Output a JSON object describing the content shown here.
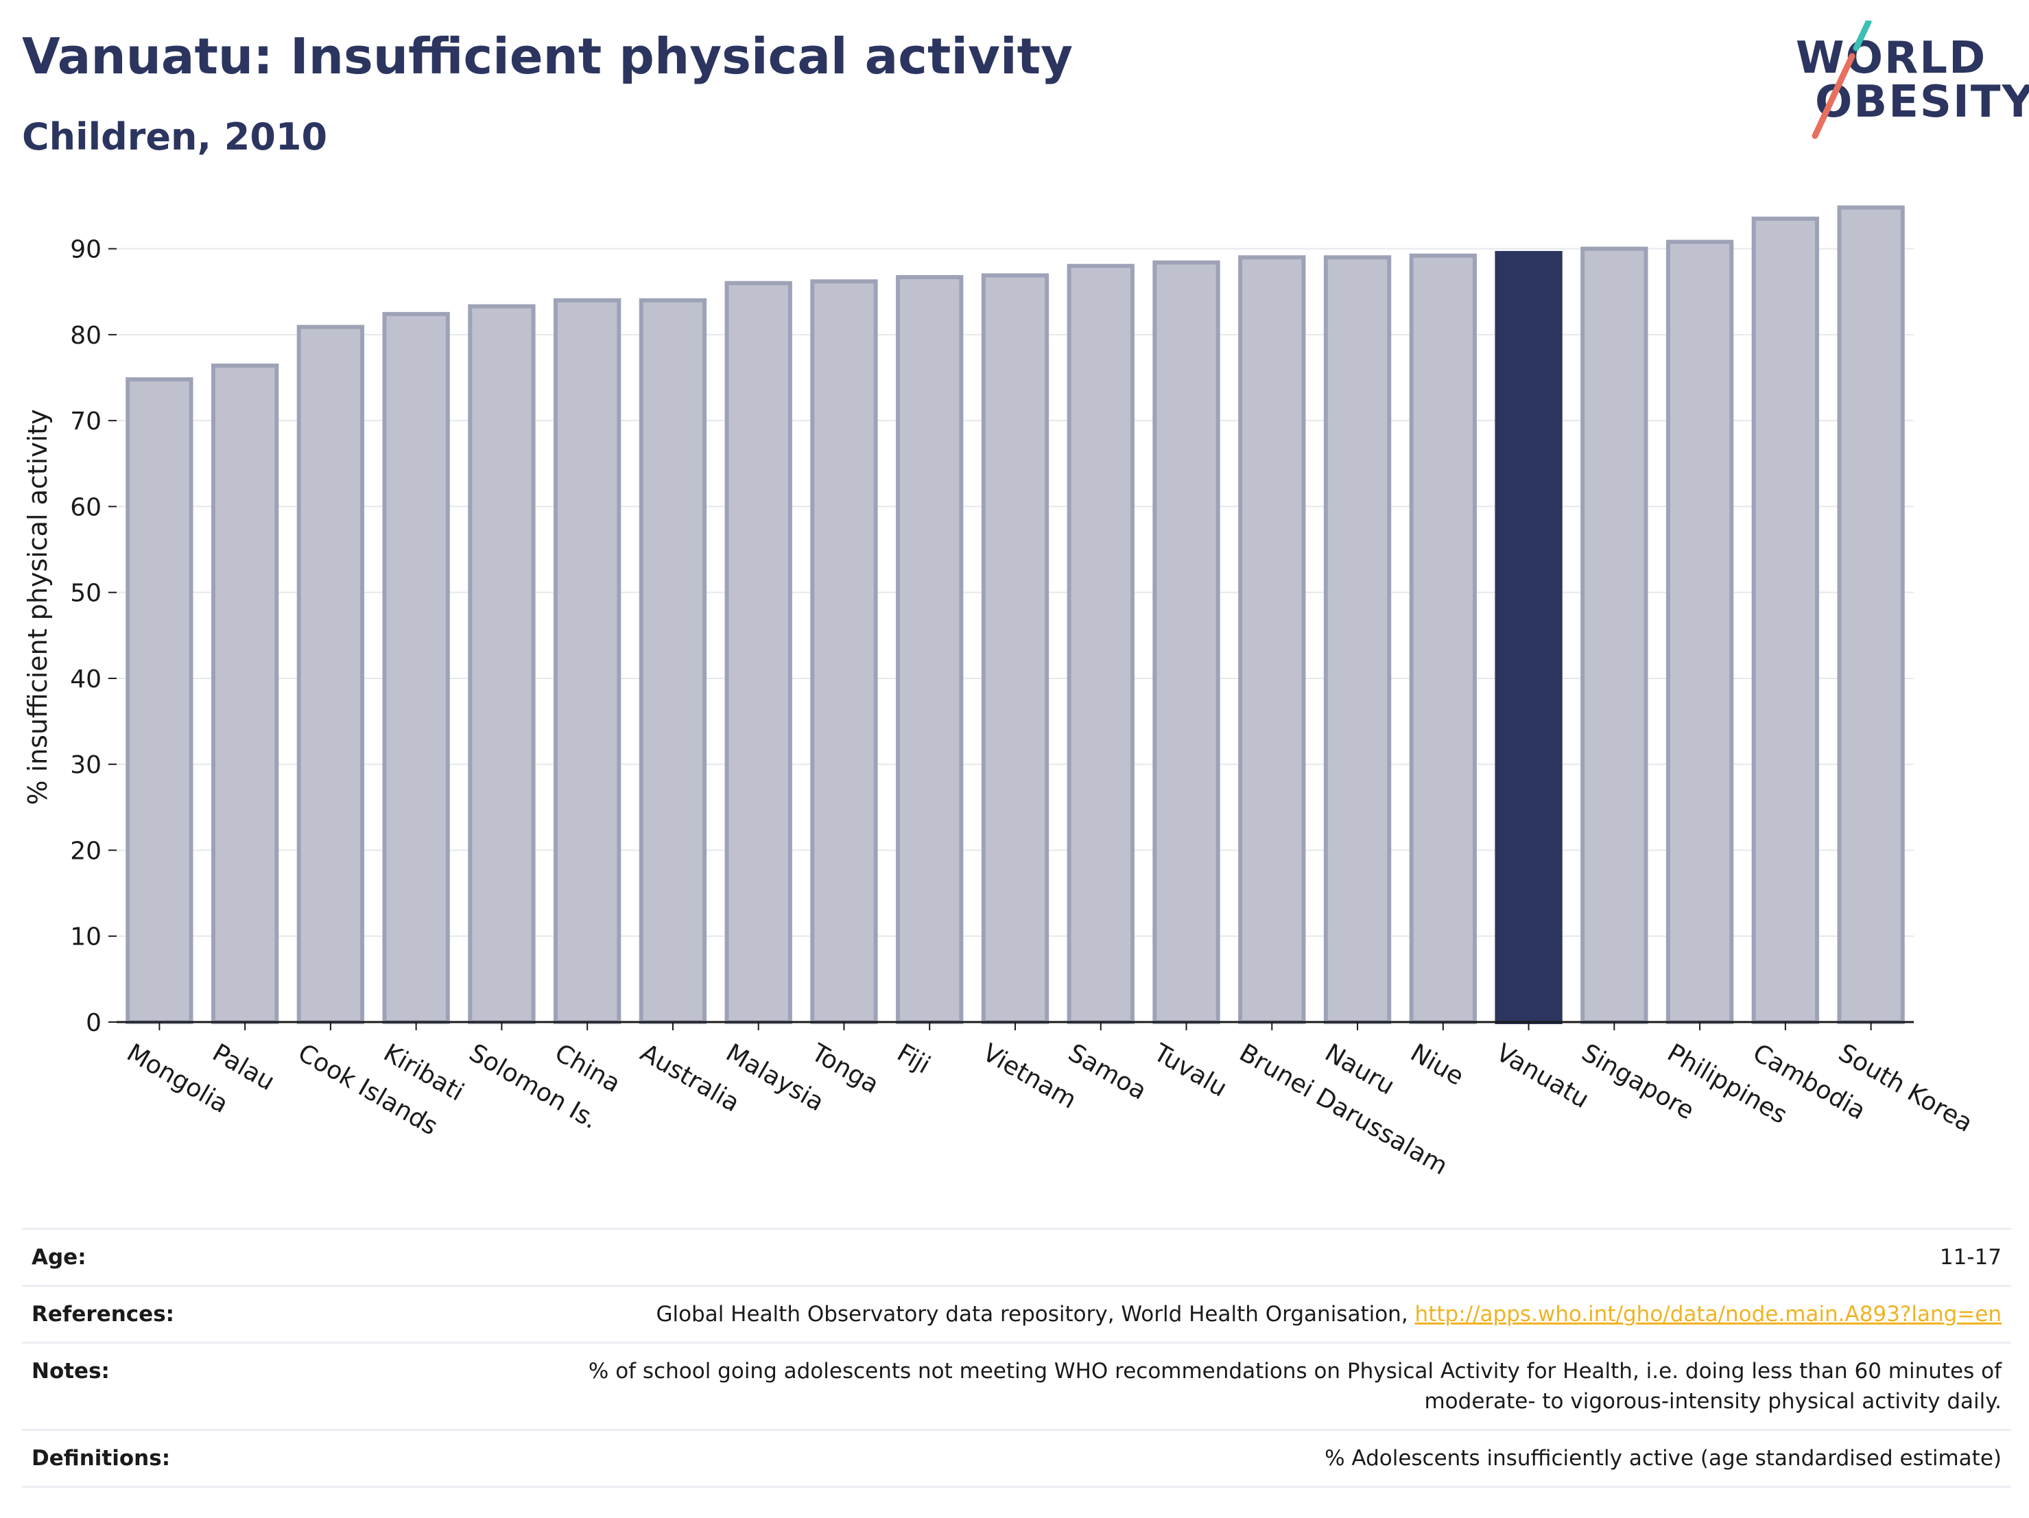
{
  "header": {
    "title": "Vanuatu: Insufficient physical activity",
    "subtitle": "Children, 2010"
  },
  "logo": {
    "line1": "WORLD",
    "line2": "OBESITY"
  },
  "colors": {
    "highlight": "#2b355f",
    "bar_fill": "#bfc2ce",
    "bar_stroke": "#9da2b7",
    "grid": "#e6e8ee",
    "logo_accent_teal": "#3cbfb4",
    "logo_accent_coral": "#e8705f",
    "link": "#f0b323"
  },
  "chart_data": {
    "type": "bar",
    "title": "Vanuatu: Insufficient physical activity",
    "subtitle": "Children, 2010",
    "xlabel": "",
    "ylabel": "% insufficient physical activity",
    "ylim": [
      0,
      95
    ],
    "yticks": [
      0,
      10,
      20,
      30,
      40,
      50,
      60,
      70,
      80,
      90
    ],
    "grid": true,
    "highlight_category": "Vanuatu",
    "categories": [
      "Mongolia",
      "Palau",
      "Cook Islands",
      "Kiribati",
      "Solomon Is.",
      "China",
      "Australia",
      "Malaysia",
      "Tonga",
      "Fiji",
      "Vietnam",
      "Samoa",
      "Tuvalu",
      "Brunei Darussalam",
      "Nauru",
      "Niue",
      "Vanuatu",
      "Singapore",
      "Philippines",
      "Cambodia",
      "South Korea"
    ],
    "values": [
      74.8,
      76.4,
      80.9,
      82.4,
      83.3,
      84.0,
      84.0,
      86.0,
      86.2,
      86.7,
      86.9,
      88.0,
      88.4,
      89.0,
      89.0,
      89.2,
      89.5,
      90.0,
      90.8,
      93.5,
      94.8
    ]
  },
  "meta": {
    "age_label": "Age:",
    "age_value": "11-17",
    "references_label": "References:",
    "references_text": "Global Health Observatory data repository, World Health Organisation, ",
    "references_link": "http://apps.who.int/gho/data/node.main.A893?lang=en",
    "notes_label": "Notes:",
    "notes_line1": "% of school going adolescents not meeting WHO recommendations on Physical Activity for Health, i.e. doing less than 60 minutes of",
    "notes_line2": "moderate- to vigorous-intensity physical activity daily.",
    "definitions_label": "Definitions:",
    "definitions_value": "% Adolescents insufficiently active (age standardised estimate)"
  }
}
